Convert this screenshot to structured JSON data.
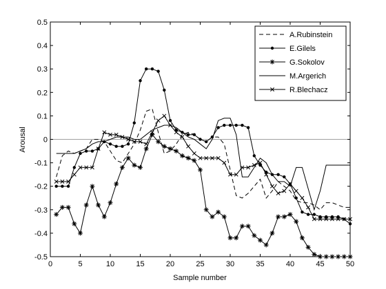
{
  "chart_data": {
    "type": "line",
    "xlabel": "Sample number",
    "ylabel": "Arousal",
    "xlim": [
      0,
      50
    ],
    "ylim": [
      -0.5,
      0.5
    ],
    "x_ticks": [
      "0",
      "5",
      "10",
      "15",
      "20",
      "25",
      "30",
      "35",
      "40",
      "45",
      "50"
    ],
    "y_ticks": [
      "-0.5",
      "-0.4",
      "-0.3",
      "-0.2",
      "-0.1",
      "0",
      "0.1",
      "0.2",
      "0.3",
      "0.4",
      "0.5"
    ],
    "grid": false,
    "legend_position": "top-right",
    "reference_line": {
      "y": 0,
      "color": "#a0a0a0"
    },
    "series": [
      {
        "name": "A.Rubinstein",
        "style": "dashed",
        "marker": "none",
        "color": "#000000",
        "x": [
          1,
          2,
          3,
          4,
          5,
          6,
          7,
          8,
          9,
          10,
          11,
          12,
          13,
          14,
          15,
          16,
          17,
          18,
          19,
          20,
          21,
          22,
          23,
          24,
          25,
          26,
          27,
          28,
          29,
          30,
          31,
          32,
          33,
          34,
          35,
          36,
          37,
          38,
          39,
          40,
          41,
          42,
          43,
          44,
          45,
          46,
          47,
          48,
          49,
          50
        ],
        "y": [
          -0.16,
          -0.07,
          -0.05,
          -0.06,
          -0.05,
          -0.04,
          0.0,
          0.0,
          -0.01,
          -0.05,
          -0.09,
          -0.1,
          -0.06,
          -0.02,
          0.04,
          0.12,
          0.13,
          0.03,
          -0.06,
          -0.05,
          -0.02,
          0.02,
          0.03,
          0.02,
          0.0,
          -0.01,
          0.01,
          0.01,
          -0.02,
          -0.13,
          -0.24,
          -0.25,
          -0.23,
          -0.2,
          -0.17,
          -0.25,
          -0.22,
          -0.18,
          -0.2,
          -0.22,
          -0.26,
          -0.27,
          -0.27,
          -0.28,
          -0.3,
          -0.27,
          -0.27,
          -0.28,
          -0.29,
          -0.29
        ]
      },
      {
        "name": "E.Gilels",
        "style": "solid",
        "marker": "dot",
        "color": "#000000",
        "x": [
          1,
          2,
          3,
          4,
          5,
          6,
          7,
          8,
          9,
          10,
          11,
          12,
          13,
          14,
          15,
          16,
          17,
          18,
          19,
          20,
          21,
          22,
          23,
          24,
          25,
          26,
          27,
          28,
          29,
          30,
          31,
          32,
          33,
          34,
          35,
          36,
          37,
          38,
          39,
          40,
          41,
          42,
          43,
          44,
          45,
          46,
          47,
          48,
          49,
          50
        ],
        "y": [
          -0.2,
          -0.2,
          -0.2,
          -0.12,
          -0.06,
          -0.05,
          -0.05,
          -0.04,
          -0.01,
          -0.02,
          -0.03,
          -0.03,
          -0.02,
          0.07,
          0.25,
          0.3,
          0.3,
          0.29,
          0.21,
          0.08,
          0.04,
          0.03,
          0.02,
          0.02,
          0.0,
          -0.01,
          0.01,
          0.05,
          0.06,
          0.06,
          0.06,
          0.06,
          0.05,
          -0.07,
          -0.11,
          -0.14,
          -0.15,
          -0.15,
          -0.16,
          -0.19,
          -0.25,
          -0.31,
          -0.32,
          -0.32,
          -0.33,
          -0.33,
          -0.33,
          -0.33,
          -0.34,
          -0.36
        ]
      },
      {
        "name": "G.Sokolov",
        "style": "solid",
        "marker": "star",
        "color": "#000000",
        "x": [
          1,
          2,
          3,
          4,
          5,
          6,
          7,
          8,
          9,
          10,
          11,
          12,
          13,
          14,
          15,
          16,
          17,
          18,
          19,
          20,
          21,
          22,
          23,
          24,
          25,
          26,
          27,
          28,
          29,
          30,
          31,
          32,
          33,
          34,
          35,
          36,
          37,
          38,
          39,
          40,
          41,
          42,
          43,
          44,
          45,
          46,
          47,
          48,
          49,
          50
        ],
        "y": [
          -0.32,
          -0.29,
          -0.29,
          -0.36,
          -0.4,
          -0.28,
          -0.2,
          -0.28,
          -0.33,
          -0.27,
          -0.19,
          -0.12,
          -0.08,
          -0.11,
          -0.12,
          -0.04,
          0.02,
          -0.01,
          -0.03,
          -0.04,
          -0.05,
          -0.07,
          -0.08,
          -0.09,
          -0.13,
          -0.3,
          -0.33,
          -0.31,
          -0.33,
          -0.42,
          -0.42,
          -0.37,
          -0.37,
          -0.41,
          -0.43,
          -0.45,
          -0.4,
          -0.33,
          -0.33,
          -0.32,
          -0.35,
          -0.42,
          -0.46,
          -0.49,
          -0.5,
          -0.5,
          -0.5,
          -0.5,
          -0.5,
          -0.5
        ]
      },
      {
        "name": "M.Argerich",
        "style": "solid",
        "marker": "none",
        "color": "#000000",
        "x": [
          1,
          2,
          3,
          4,
          5,
          6,
          7,
          8,
          9,
          10,
          11,
          12,
          13,
          14,
          15,
          16,
          17,
          18,
          19,
          20,
          21,
          22,
          23,
          24,
          25,
          26,
          27,
          28,
          29,
          30,
          31,
          32,
          33,
          34,
          35,
          36,
          37,
          38,
          39,
          40,
          41,
          42,
          43,
          44,
          45,
          46,
          47,
          48,
          49,
          50
        ],
        "y": [
          -0.06,
          -0.06,
          -0.06,
          -0.06,
          -0.05,
          -0.04,
          -0.02,
          -0.01,
          -0.01,
          0.0,
          0.01,
          0.01,
          0.01,
          0.0,
          0.0,
          0.02,
          0.04,
          0.05,
          0.06,
          0.06,
          0.05,
          0.03,
          0.01,
          0.0,
          -0.02,
          -0.04,
          0.0,
          0.08,
          0.09,
          0.09,
          0.02,
          -0.16,
          -0.16,
          -0.12,
          -0.08,
          -0.1,
          -0.15,
          -0.18,
          -0.18,
          -0.2,
          -0.12,
          -0.12,
          -0.21,
          -0.3,
          -0.22,
          -0.11,
          -0.11,
          -0.11,
          -0.11,
          -0.11
        ]
      },
      {
        "name": "R.Blechacz",
        "style": "solid",
        "marker": "cross",
        "color": "#000000",
        "x": [
          1,
          2,
          3,
          4,
          5,
          6,
          7,
          8,
          9,
          10,
          11,
          12,
          13,
          14,
          15,
          16,
          17,
          18,
          19,
          20,
          21,
          22,
          23,
          24,
          25,
          26,
          27,
          28,
          29,
          30,
          31,
          32,
          33,
          34,
          35,
          36,
          37,
          38,
          39,
          40,
          41,
          42,
          43,
          44,
          45,
          46,
          47,
          48,
          49,
          50
        ],
        "y": [
          -0.18,
          -0.18,
          -0.18,
          -0.15,
          -0.12,
          -0.12,
          -0.12,
          -0.04,
          0.03,
          0.02,
          0.02,
          0.01,
          0.0,
          -0.01,
          -0.01,
          -0.02,
          0.03,
          0.08,
          0.1,
          0.06,
          0.03,
          0.01,
          -0.03,
          -0.06,
          -0.08,
          -0.08,
          -0.08,
          -0.08,
          -0.1,
          -0.15,
          -0.15,
          -0.12,
          -0.12,
          -0.11,
          -0.1,
          -0.15,
          -0.2,
          -0.23,
          -0.22,
          -0.19,
          -0.22,
          -0.25,
          -0.29,
          -0.34,
          -0.34,
          -0.34,
          -0.34,
          -0.34,
          -0.34,
          -0.34
        ]
      }
    ]
  }
}
